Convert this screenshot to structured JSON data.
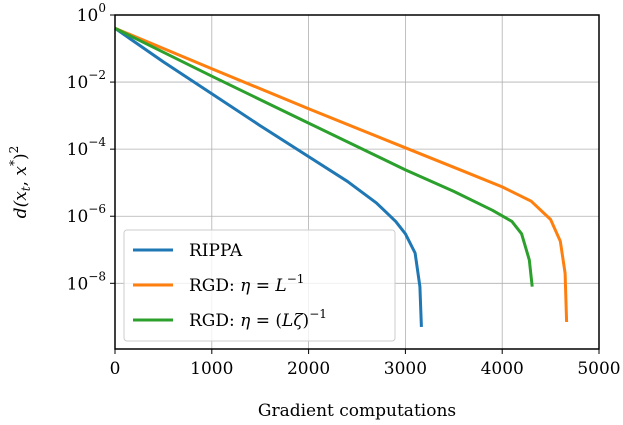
{
  "chart_data": {
    "type": "line",
    "xlabel": "Gradient computations",
    "ylabel": "d(x_t, x*)^2",
    "yscale": "log",
    "xlim": [
      0,
      5000
    ],
    "ylim": [
      1.1e-10,
      1.0
    ],
    "xticks": [
      {
        "value": 0,
        "label": "0"
      },
      {
        "value": 1000,
        "label": "1000"
      },
      {
        "value": 2000,
        "label": "2000"
      },
      {
        "value": 3000,
        "label": "3000"
      },
      {
        "value": 4000,
        "label": "4000"
      },
      {
        "value": 5000,
        "label": "5000"
      }
    ],
    "yticks": [
      {
        "value": 1,
        "exponent": "0"
      },
      {
        "value": 0.01,
        "exponent": "−2"
      },
      {
        "value": 0.0001,
        "exponent": "−4"
      },
      {
        "value": 1e-06,
        "exponent": "−6"
      },
      {
        "value": 1e-08,
        "exponent": "−8"
      }
    ],
    "grid": true,
    "legend_position": "lower-left",
    "series": [
      {
        "name": "RIPPA",
        "color": "#1f77b4",
        "points": [
          [
            0,
            0.4
          ],
          [
            500,
            0.04
          ],
          [
            1000,
            0.0045
          ],
          [
            1500,
            0.0005
          ],
          [
            2000,
            6e-05
          ],
          [
            2400,
            1.1e-05
          ],
          [
            2700,
            2.5e-06
          ],
          [
            2900,
            7e-07
          ],
          [
            3000,
            3e-07
          ],
          [
            3100,
            8e-08
          ],
          [
            3150,
            8e-09
          ],
          [
            3165,
            5e-10
          ]
        ]
      },
      {
        "name": "RGD: η = L^−1",
        "color": "#ff7f0e",
        "points": [
          [
            0,
            0.4
          ],
          [
            1000,
            0.025
          ],
          [
            2000,
            0.0016
          ],
          [
            3000,
            0.00011
          ],
          [
            3600,
            2.2e-05
          ],
          [
            4000,
            7.5e-06
          ],
          [
            4300,
            2.8e-06
          ],
          [
            4500,
            8e-07
          ],
          [
            4600,
            1.8e-07
          ],
          [
            4650,
            2e-08
          ],
          [
            4665,
            7e-10
          ]
        ]
      },
      {
        "name": "RGD: η = (Lζ)^−1",
        "color": "#2ca02c",
        "points": [
          [
            0,
            0.4
          ],
          [
            1000,
            0.015
          ],
          [
            2000,
            0.0006
          ],
          [
            3000,
            2.4e-05
          ],
          [
            3500,
            5.5e-06
          ],
          [
            3900,
            1.5e-06
          ],
          [
            4100,
            7e-07
          ],
          [
            4200,
            3e-07
          ],
          [
            4280,
            5e-08
          ],
          [
            4310,
            8e-09
          ]
        ]
      }
    ]
  }
}
